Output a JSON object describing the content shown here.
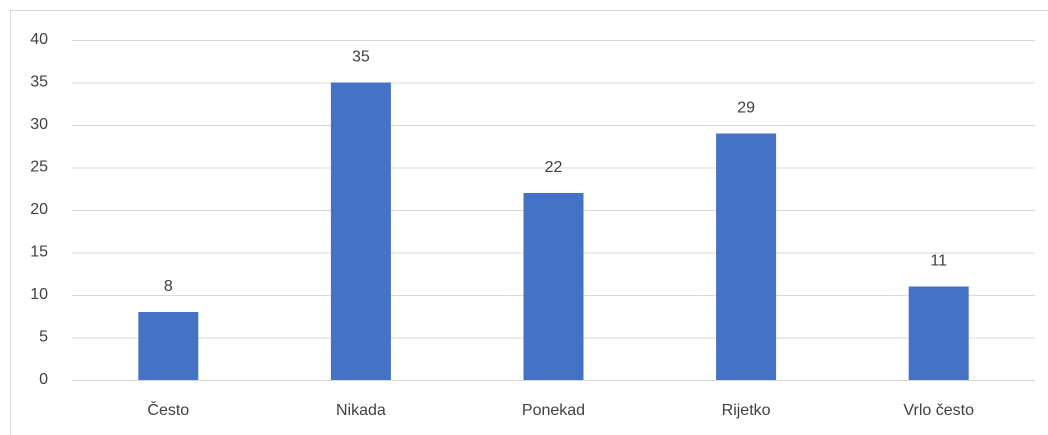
{
  "chart_data": {
    "type": "bar",
    "categories": [
      "Često",
      "Nikada",
      "Ponekad",
      "Rijetko",
      "Vrlo često"
    ],
    "values": [
      8,
      35,
      22,
      29,
      11
    ],
    "color": "#4472c4",
    "ylim": [
      0,
      40
    ],
    "yticks": [
      0,
      5,
      10,
      15,
      20,
      25,
      30,
      35,
      40
    ],
    "grid": true
  }
}
